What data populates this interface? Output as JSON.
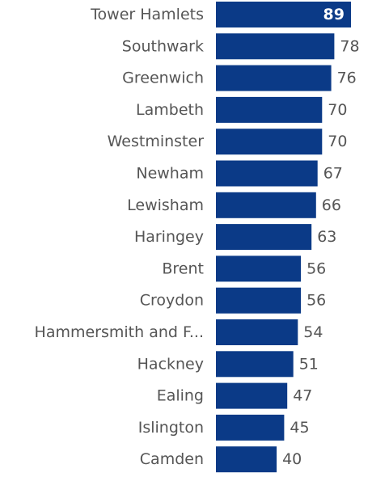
{
  "chart_data": {
    "type": "bar",
    "orientation": "horizontal",
    "categories": [
      "Tower Hamlets",
      "Southwark",
      "Greenwich",
      "Lambeth",
      "Westminster",
      "Newham",
      "Lewisham",
      "Haringey",
      "Brent",
      "Croydon",
      "Hammersmith and F...",
      "Hackney",
      "Ealing",
      "Islington",
      "Camden"
    ],
    "values": [
      89,
      78,
      76,
      70,
      70,
      67,
      66,
      63,
      56,
      56,
      54,
      51,
      47,
      45,
      40
    ],
    "title": "",
    "xlabel": "",
    "ylabel": "",
    "xlim": [
      0,
      89
    ],
    "grid": false,
    "legend": "none",
    "bar_color": "#0b3a87",
    "label_color": "#555555",
    "inside_label_color": "#ffffff"
  }
}
